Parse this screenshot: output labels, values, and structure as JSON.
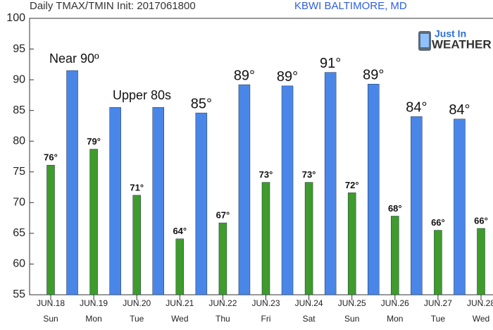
{
  "chart_data": {
    "type": "bar",
    "title": "Daily TMAX/TMIN Init: 2017061800",
    "subtitle": "KBWI BALTIMORE, MD",
    "logo": {
      "top": "Just In",
      "bottom": "WEATHER"
    },
    "annotations": [
      "Near 90º",
      "Upper 80s"
    ],
    "categories": [
      "JUN.18",
      "JUN.19",
      "JUN.20",
      "JUN.21",
      "JUN.22",
      "JUN.23",
      "JUN.24",
      "JUN.25",
      "JUN.26",
      "JUN.27",
      "JUN.28"
    ],
    "weekdays": [
      "Sun",
      "Mon",
      "Tue",
      "Wed",
      "Thu",
      "Fri",
      "Sat",
      "Sun",
      "Mon",
      "Tue",
      "Wed"
    ],
    "series": [
      {
        "color": "#4a86e8",
        "values": [
          91.5,
          85.5,
          85.5,
          84.6,
          89.2,
          89.0,
          91.2,
          89.3,
          84.0,
          83.6,
          null
        ],
        "value_labels": [
          null,
          null,
          null,
          "85°",
          "89°",
          "89°",
          "91°",
          "89°",
          "84°",
          "84°",
          null
        ]
      },
      {
        "color": "#3e9b2c",
        "values": [
          76.1,
          78.7,
          71.2,
          64.1,
          66.7,
          73.3,
          73.3,
          71.6,
          67.8,
          65.5,
          65.8
        ],
        "value_labels": [
          "76°",
          "79°",
          "71°",
          "64°",
          "67°",
          "73°",
          "73°",
          "72°",
          "68°",
          "66°",
          "66°"
        ]
      }
    ],
    "ylim": [
      55,
      100
    ],
    "yticks": [
      55,
      60,
      65,
      70,
      75,
      80,
      85,
      90,
      95,
      100
    ]
  }
}
